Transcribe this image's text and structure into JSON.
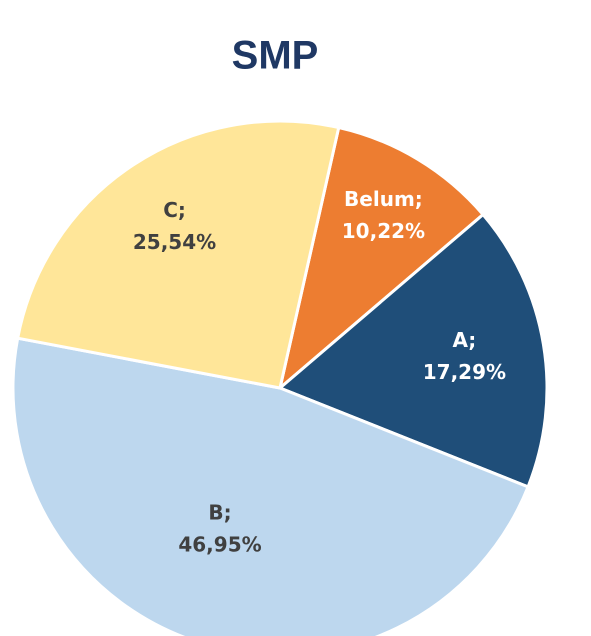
{
  "chart_data": {
    "type": "pie",
    "title": "SMP",
    "categories": [
      "Belum;",
      "A;",
      "B;",
      "C;"
    ],
    "values": [
      10.22,
      17.29,
      46.95,
      25.54
    ],
    "value_labels": [
      "10,22%",
      "17,29%",
      "46,95%",
      "25,54%"
    ],
    "colors": [
      "#ED7D31",
      "#1F4E79",
      "#BDD7EE",
      "#FFE699"
    ]
  }
}
